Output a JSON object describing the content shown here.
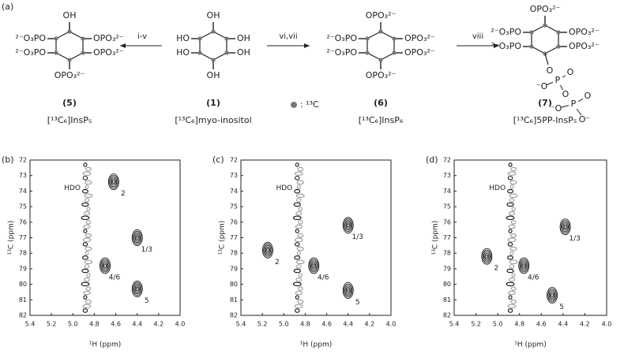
{
  "scheme": {
    "panel": "(a)",
    "molecules": [
      {
        "number": "(5)",
        "name": "[¹³C₆]InsP₅",
        "substituents": {
          "top": "OH",
          "upper_left": "²⁻O₃PO",
          "upper_right": "OPO₃²⁻",
          "lower_left": "²⁻O₃PO",
          "lower_right": "OPO₃²⁻",
          "bottom": "OPO₃²⁻"
        }
      },
      {
        "number": "(1)",
        "name": "[¹³C₆]myo-inositol",
        "substituents": {
          "top": "OH",
          "upper_left": "HO",
          "upper_right": "OH",
          "lower_left": "HO",
          "lower_right": "OH",
          "bottom": "OH"
        }
      },
      {
        "number": "(6)",
        "name": "[¹³C₆]InsP₆",
        "substituents": {
          "top": "OPO₃²⁻",
          "upper_left": "²⁻O₃PO",
          "upper_right": "OPO₃²⁻",
          "lower_left": "²⁻O₃PO",
          "lower_right": "OPO₃²⁻",
          "bottom": "OPO₃²⁻"
        }
      },
      {
        "number": "(7)",
        "name": "[¹³C₆]5PP-InsP₅",
        "substituents": {
          "top": "OPO₃²⁻",
          "upper_left": "²⁻O₃PO",
          "upper_right": "OPO₃²⁻",
          "lower_left": "²⁻O₃PO",
          "lower_right": "OPO₃²⁻"
        },
        "pyrophosphate": [
          "O",
          "⁻O",
          "P",
          "O",
          "O",
          "⁻O",
          "P",
          "O",
          "O⁻"
        ]
      }
    ],
    "arrows": [
      "i-v",
      "vi,vii",
      "viii"
    ],
    "legend": ": ¹³C"
  },
  "chart_data": [
    {
      "type": "contour",
      "panel": "(b)",
      "xlabel": "¹H (ppm)",
      "ylabel": "¹³C (ppm)",
      "xlim": [
        5.4,
        4.0
      ],
      "ylim": [
        72,
        82
      ],
      "xticks": [
        5.4,
        5.2,
        {
          "value": 5,
          "label": "5.0"
        },
        4.8,
        4.6,
        4.4,
        4.2,
        {
          "value": 4,
          "label": "4.0"
        }
      ],
      "yticks": [
        72,
        73,
        74,
        75,
        76,
        77,
        78,
        79,
        80,
        81,
        82
      ],
      "hdo": {
        "label": "HDO",
        "x": 4.87
      },
      "peaks": [
        {
          "label": "2",
          "x": 4.62,
          "y": 73.4
        },
        {
          "label": "1/3",
          "x": 4.4,
          "y": 77.0
        },
        {
          "label": "4/6",
          "x": 4.7,
          "y": 78.8
        },
        {
          "label": "5",
          "x": 4.4,
          "y": 80.3
        }
      ]
    },
    {
      "type": "contour",
      "panel": "(c)",
      "xlabel": "¹H (ppm)",
      "ylabel": "¹³C (ppm)",
      "xlim": [
        5.4,
        4.0
      ],
      "ylim": [
        72,
        82
      ],
      "xticks": [
        5.4,
        5.2,
        {
          "value": 5,
          "label": "5.0"
        },
        4.8,
        4.6,
        4.4,
        4.2,
        {
          "value": 4,
          "label": "4.0"
        }
      ],
      "yticks": [
        72,
        73,
        74,
        75,
        76,
        77,
        78,
        79,
        80,
        81,
        82
      ],
      "hdo": {
        "label": "HDO",
        "x": 4.86
      },
      "peaks": [
        {
          "label": "2",
          "x": 5.15,
          "y": 77.8
        },
        {
          "label": "1/3",
          "x": 4.4,
          "y": 76.2
        },
        {
          "label": "4/6",
          "x": 4.72,
          "y": 78.8
        },
        {
          "label": "5",
          "x": 4.4,
          "y": 80.4
        }
      ]
    },
    {
      "type": "contour",
      "panel": "(d)",
      "xlabel": "¹H (ppm)",
      "ylabel": "¹³C (ppm)",
      "xlim": [
        5.4,
        4.0
      ],
      "ylim": [
        72,
        82
      ],
      "xticks": [
        5.4,
        5.2,
        {
          "value": 5,
          "label": "5.0"
        },
        4.8,
        4.6,
        4.4,
        4.2,
        {
          "value": 4,
          "label": "4.0"
        }
      ],
      "yticks": [
        72,
        73,
        74,
        75,
        76,
        77,
        78,
        79,
        80,
        81,
        82
      ],
      "hdo": {
        "label": "HDO",
        "x": 4.87
      },
      "peaks": [
        {
          "label": "2",
          "x": 5.1,
          "y": 78.2
        },
        {
          "label": "1/3",
          "x": 4.38,
          "y": 76.3
        },
        {
          "label": "4/6",
          "x": 4.76,
          "y": 78.8
        },
        {
          "label": "5",
          "x": 4.5,
          "y": 80.7
        }
      ]
    }
  ]
}
